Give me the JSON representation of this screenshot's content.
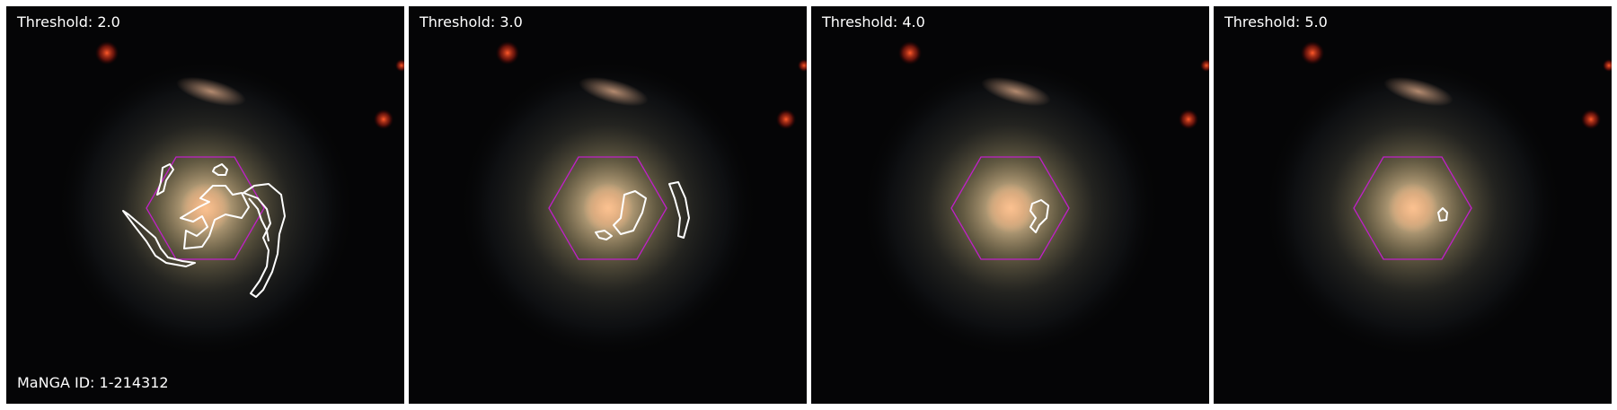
{
  "figure": {
    "panels": [
      {
        "threshold_label": "Threshold: 2.0"
      },
      {
        "threshold_label": "Threshold: 3.0"
      },
      {
        "threshold_label": "Threshold: 4.0"
      },
      {
        "threshold_label": "Threshold: 5.0"
      }
    ],
    "manga_id_label": "MaNGA ID: 1-214312"
  },
  "colors": {
    "hexagon": "#c020c8",
    "contour": "#ffffff",
    "background": "#000000",
    "border": "#ffffff"
  }
}
